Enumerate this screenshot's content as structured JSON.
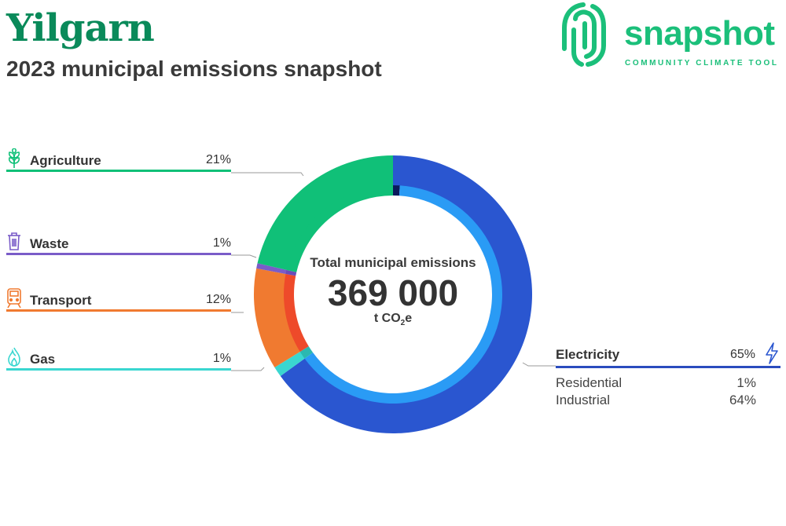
{
  "header": {
    "title": "Yilgarn",
    "subtitle": "2023 municipal emissions snapshot"
  },
  "logo": {
    "word": "snapshot",
    "tagline": "COMMUNITY CLIMATE TOOL",
    "color": "#1bbf7a"
  },
  "center": {
    "label": "Total municipal emissions",
    "value": "369 000",
    "unit_prefix": "t CO",
    "unit_sub": "2",
    "unit_suffix": "e"
  },
  "chart_data": {
    "type": "pie",
    "title": "Total municipal emissions",
    "total": "369 000",
    "unit": "t CO2e",
    "categories": [
      {
        "name": "Electricity",
        "label": "65%",
        "value": 65,
        "color": "#2a56d0",
        "icon": "lightning-icon",
        "subcategories": [
          {
            "name": "Residential",
            "label": "1%",
            "value": 1,
            "color": "#0b1a5c"
          },
          {
            "name": "Industrial",
            "label": "64%",
            "value": 64,
            "color": "#2a9bf5"
          }
        ]
      },
      {
        "name": "Gas",
        "label": "1%",
        "value": 1.2,
        "color": "#3ad6d0",
        "icon": "flame-icon",
        "subcategories": [
          {
            "name": "",
            "value": 1.2,
            "color": "#2bb8b0"
          }
        ]
      },
      {
        "name": "Transport",
        "label": "12%",
        "value": 11.8,
        "color": "#f07a30",
        "icon": "train-icon",
        "subcategories": [
          {
            "name": "",
            "value": 11.8,
            "color": "#ee4a2a"
          }
        ]
      },
      {
        "name": "Waste",
        "label": "1%",
        "value": 0.6,
        "color": "#7a5cc8",
        "icon": "trash-bin-icon",
        "subcategories": [
          {
            "name": "",
            "value": 0.6,
            "color": "#6a4cb8"
          }
        ]
      },
      {
        "name": "Agriculture",
        "label": "21%",
        "value": 21.4,
        "color": "#10c078",
        "icon": "wheat-icon",
        "subcategories": [
          {
            "name": "",
            "value": 21.4,
            "color": "#10c078"
          }
        ]
      }
    ]
  }
}
